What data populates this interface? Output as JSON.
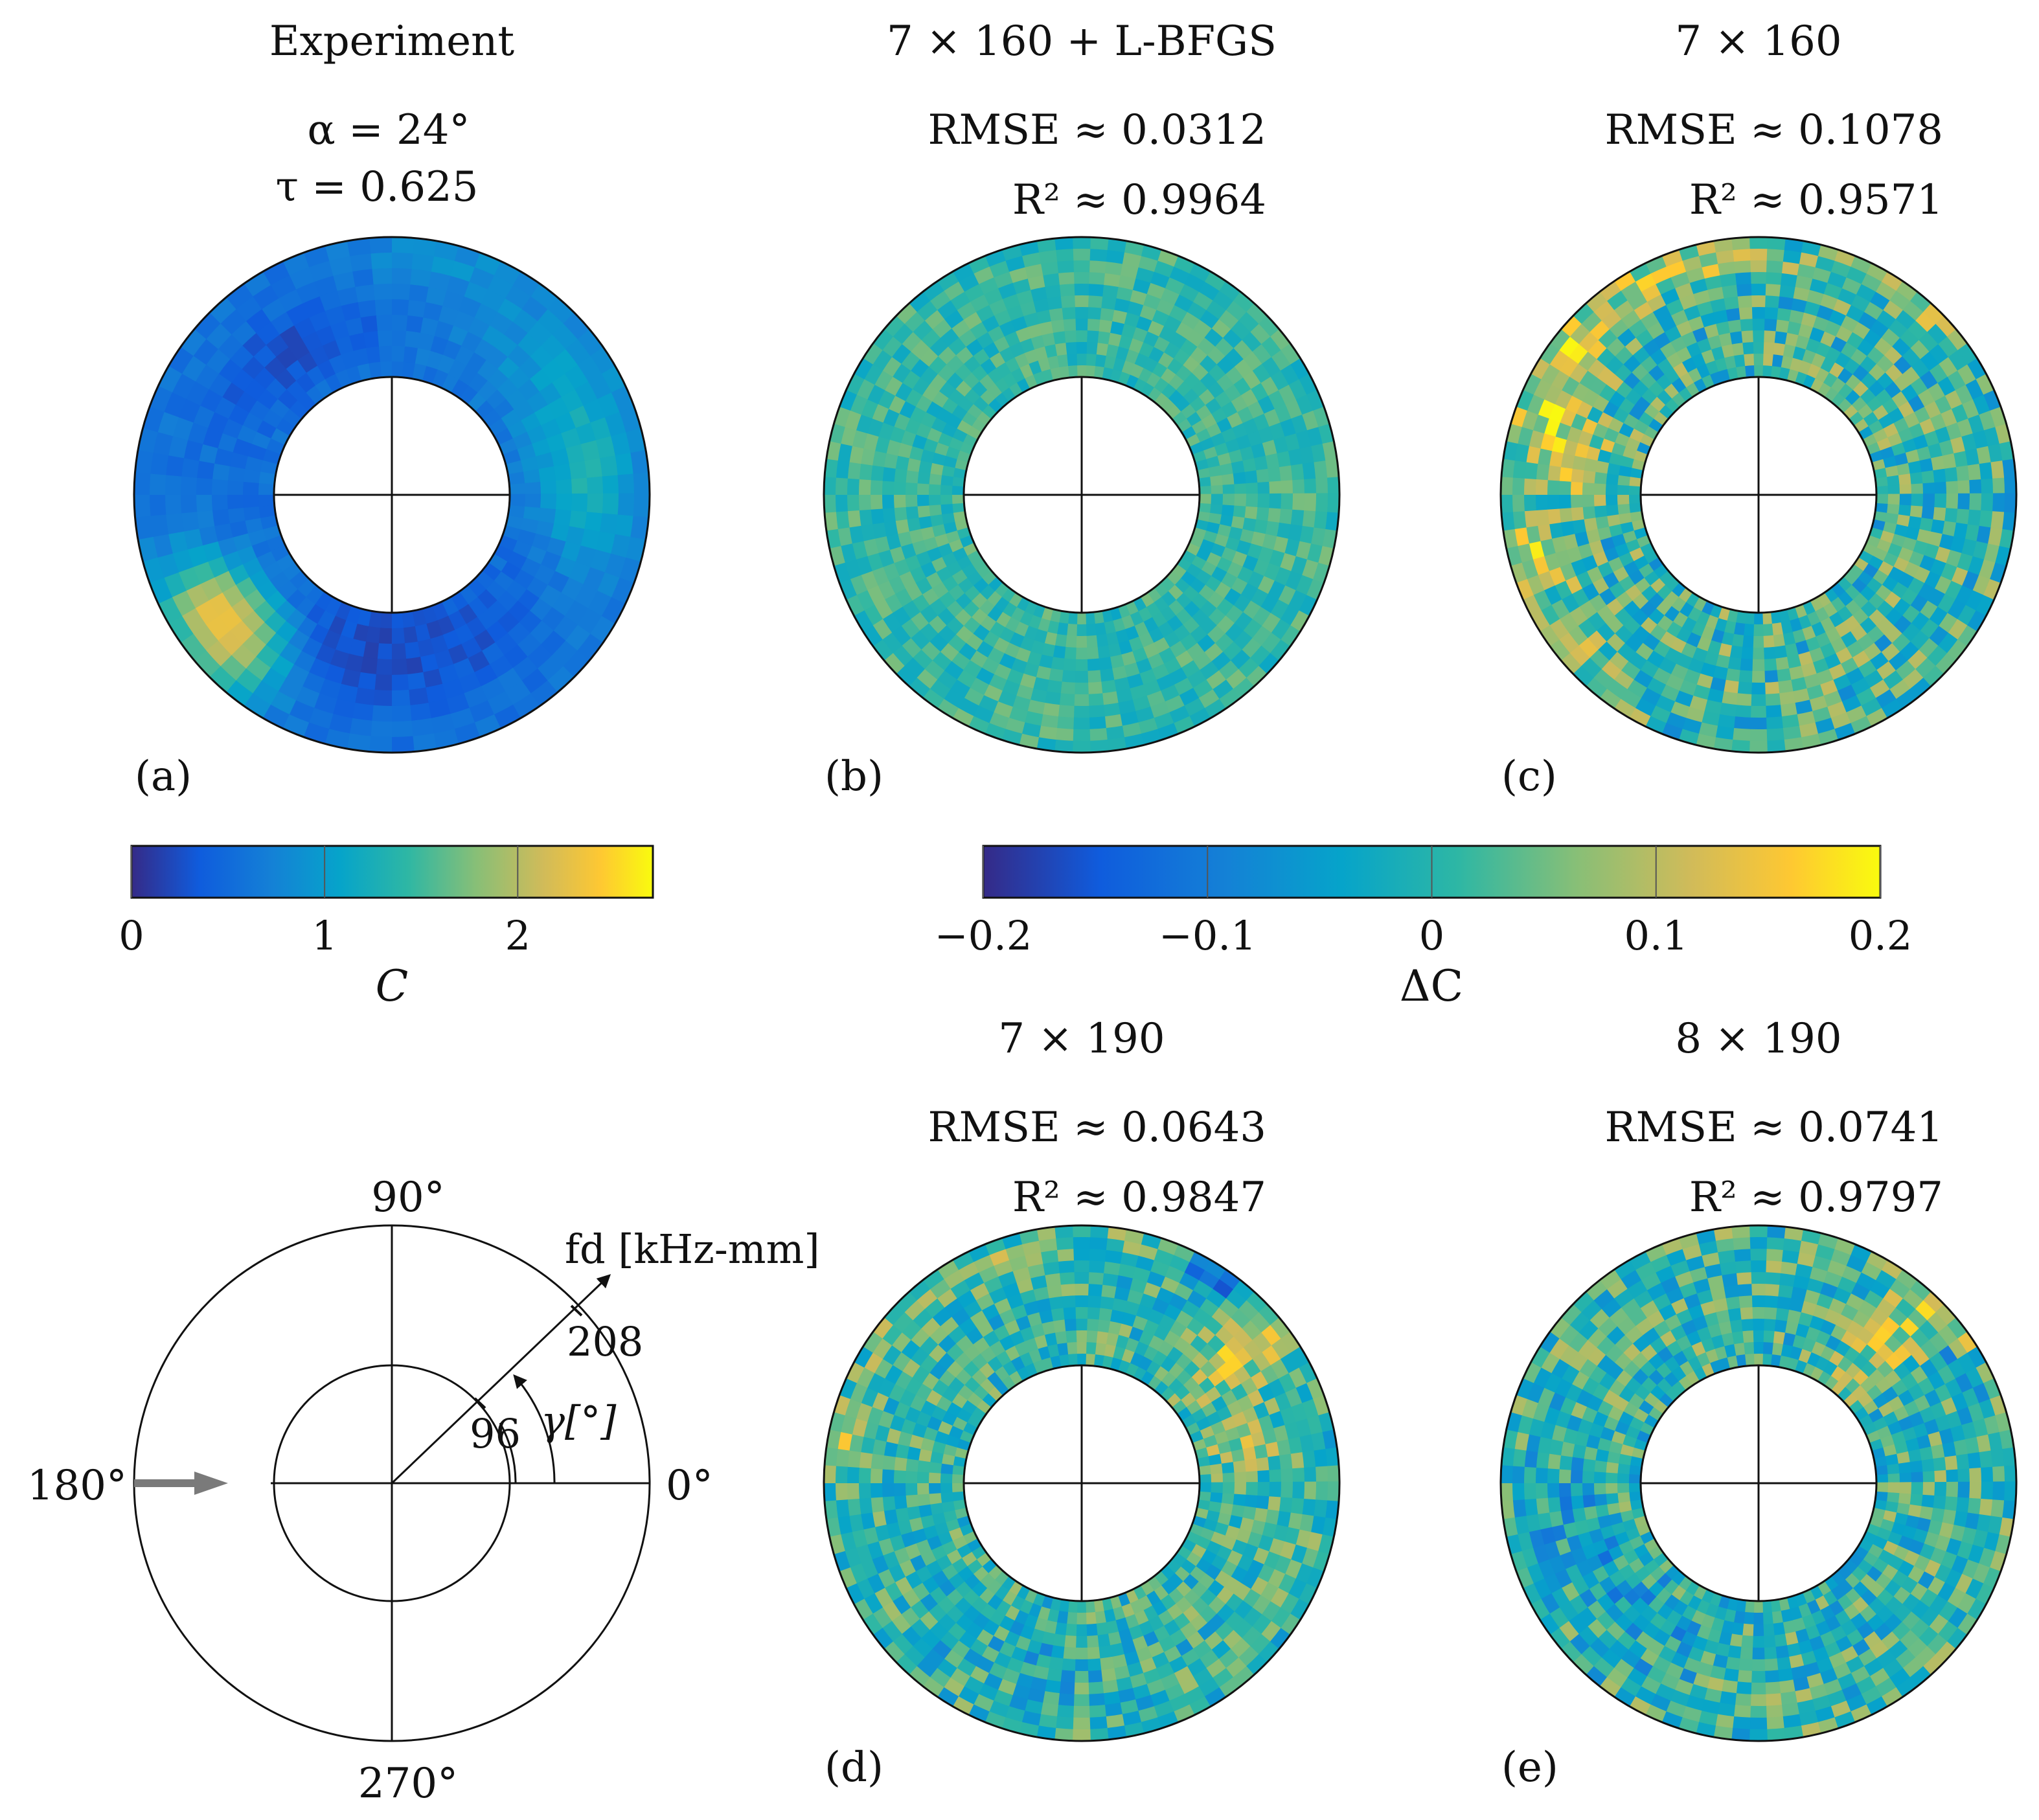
{
  "chart_data": {
    "type": "heatmap",
    "description_text": "polar annular heatmaps",
    "panels": [
      {
        "id": "a",
        "label": "(a)",
        "title": "Experiment",
        "line1": "α = 24°",
        "line2": "τ = 0.625",
        "variable": "C",
        "range": [
          0,
          2.7
        ],
        "colorbar_ticks": [
          "0",
          "1",
          "2"
        ],
        "colorbar_tick_values": [
          0,
          1,
          2
        ],
        "colorbar_label": "C"
      },
      {
        "id": "b",
        "label": "(b)",
        "title": "7 × 160 + L-BFGS",
        "rmse_label": "RMSE ≈ 0.0312",
        "r2_label": "R² ≈ 0.9964",
        "rmse": 0.0312,
        "r2": 0.9964,
        "variable": "ΔC"
      },
      {
        "id": "c",
        "label": "(c)",
        "title": "7 × 160",
        "rmse_label": "RMSE ≈ 0.1078",
        "r2_label": "R² ≈ 0.9571",
        "rmse": 0.1078,
        "r2": 0.9571,
        "variable": "ΔC"
      },
      {
        "id": "d",
        "label": "(d)",
        "title": "7 × 190",
        "rmse_label": "RMSE ≈ 0.0643",
        "r2_label": "R² ≈ 0.9847",
        "rmse": 0.0643,
        "r2": 0.9847,
        "variable": "ΔC"
      },
      {
        "id": "e",
        "label": "(e)",
        "title": "8 × 190",
        "rmse_label": "RMSE ≈ 0.0741",
        "r2_label": "R² ≈ 0.9797",
        "rmse": 0.0741,
        "r2": 0.9797,
        "variable": "ΔC"
      }
    ],
    "delta_colorbar": {
      "range": [
        -0.2,
        0.2
      ],
      "ticks": [
        "−0.2",
        "−0.1",
        "0",
        "0.1",
        "0.2"
      ],
      "tick_values": [
        -0.2,
        -0.1,
        0,
        0.1,
        0.2
      ],
      "label": "ΔC"
    },
    "polar_key": {
      "angle_labels": [
        "90°",
        "180°",
        "0°",
        "270°"
      ],
      "radial_axis_label": "fd [kHz-mm]",
      "radial_ticks": [
        "96",
        "208"
      ],
      "radial_tick_values": [
        96,
        208
      ],
      "angle_label": "γ[°]",
      "axis_angle_deg": 40
    }
  },
  "colors": {
    "parula": [
      "#352a87",
      "#0f5cdd",
      "#1481d6",
      "#06a4ca",
      "#2eb7a4",
      "#87bf77",
      "#d1bb59",
      "#fec832",
      "#f9fb0e"
    ],
    "line": "#111111",
    "arrow_gray": "#7a7a7a"
  }
}
